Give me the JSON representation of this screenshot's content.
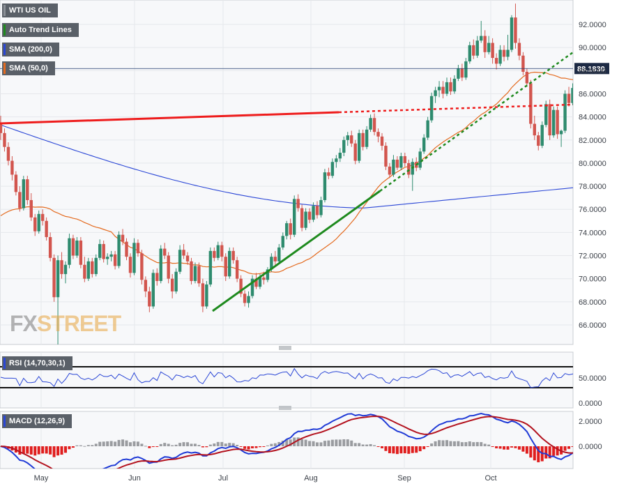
{
  "chart_data": {
    "type": "candlestick",
    "instrument": "WTI US OIL",
    "watermark": {
      "fx": "FX",
      "street": "STREET"
    },
    "indicators": {
      "trend": {
        "label": "Auto Trend Lines",
        "color": "#1e8a1e"
      },
      "sma200": {
        "label": "SMA (200,0)",
        "color": "#2a46d6"
      },
      "sma50": {
        "label": "SMA (50,0)",
        "color": "#e46a1e"
      }
    },
    "colors": {
      "up": "#2e8b6e",
      "down": "#d2554e",
      "trend_red": "#ee1c1c",
      "trend_green": "#1e8a1e",
      "price_line": "#1f3a6e"
    },
    "price_axis": {
      "min": 64.0,
      "max": 93.5,
      "ticks": [
        "92.0000",
        "90.0000",
        "88.0000",
        "86.0000",
        "84.0000",
        "82.0000",
        "80.0000",
        "78.0000",
        "76.0000",
        "74.0000",
        "72.0000",
        "70.0000",
        "68.0000",
        "66.0000"
      ]
    },
    "last_price": "88.1830",
    "x_labels": [
      "May",
      "Jun",
      "Jul",
      "Aug",
      "Sep",
      "Oct"
    ],
    "candles": [
      [
        83.5,
        84.1,
        82.0,
        82.6
      ],
      [
        82.6,
        83.0,
        81.0,
        81.4
      ],
      [
        81.4,
        81.8,
        79.8,
        80.2
      ],
      [
        80.2,
        80.6,
        78.5,
        79.0
      ],
      [
        79.0,
        79.3,
        77.2,
        77.5
      ],
      [
        77.5,
        78.0,
        75.8,
        76.1
      ],
      [
        76.1,
        78.9,
        75.9,
        78.6
      ],
      [
        78.6,
        78.9,
        76.4,
        76.8
      ],
      [
        76.8,
        77.4,
        75.0,
        75.3
      ],
      [
        75.3,
        75.6,
        73.7,
        74.1
      ],
      [
        74.1,
        75.9,
        73.9,
        75.6
      ],
      [
        75.6,
        76.0,
        74.6,
        75.0
      ],
      [
        75.0,
        75.3,
        73.3,
        73.6
      ],
      [
        73.6,
        74.0,
        71.5,
        71.8
      ],
      [
        71.8,
        72.1,
        68.0,
        68.4
      ],
      [
        68.4,
        72.0,
        64.2,
        71.6
      ],
      [
        71.6,
        72.3,
        70.0,
        70.4
      ],
      [
        70.4,
        71.5,
        69.6,
        71.2
      ],
      [
        71.2,
        73.9,
        70.9,
        73.5
      ],
      [
        73.5,
        73.8,
        71.7,
        72.0
      ],
      [
        72.0,
        73.6,
        71.8,
        73.3
      ],
      [
        73.3,
        73.6,
        70.9,
        71.2
      ],
      [
        71.2,
        71.9,
        69.7,
        70.0
      ],
      [
        70.0,
        71.8,
        69.8,
        71.5
      ],
      [
        71.5,
        71.8,
        70.1,
        70.4
      ],
      [
        70.4,
        72.1,
        70.2,
        71.8
      ],
      [
        71.8,
        73.4,
        71.6,
        73.0
      ],
      [
        73.0,
        73.3,
        71.4,
        71.7
      ],
      [
        71.7,
        72.2,
        71.2,
        71.9
      ],
      [
        71.9,
        72.4,
        71.5,
        72.1
      ],
      [
        72.1,
        72.4,
        70.8,
        71.1
      ],
      [
        71.1,
        74.1,
        70.9,
        73.8
      ],
      [
        73.8,
        74.3,
        72.9,
        73.2
      ],
      [
        73.2,
        73.5,
        71.6,
        71.9
      ],
      [
        71.9,
        72.2,
        70.1,
        70.5
      ],
      [
        70.5,
        73.5,
        70.3,
        73.1
      ],
      [
        73.1,
        73.4,
        71.9,
        72.2
      ],
      [
        72.2,
        72.5,
        69.5,
        69.9
      ],
      [
        69.9,
        70.2,
        68.4,
        68.9
      ],
      [
        68.9,
        69.3,
        67.1,
        67.6
      ],
      [
        67.6,
        70.8,
        67.4,
        70.5
      ],
      [
        70.5,
        70.9,
        69.4,
        69.8
      ],
      [
        69.8,
        72.9,
        69.6,
        72.6
      ],
      [
        72.6,
        73.1,
        71.7,
        72.0
      ],
      [
        72.0,
        72.3,
        69.6,
        70.0
      ],
      [
        70.0,
        70.4,
        68.3,
        68.9
      ],
      [
        68.9,
        70.9,
        68.7,
        70.6
      ],
      [
        70.6,
        72.9,
        70.4,
        72.5
      ],
      [
        72.5,
        73.0,
        71.7,
        72.0
      ],
      [
        72.0,
        72.3,
        71.2,
        71.5
      ],
      [
        71.5,
        71.8,
        69.5,
        69.8
      ],
      [
        69.8,
        71.4,
        69.6,
        71.1
      ],
      [
        71.1,
        71.4,
        69.3,
        69.6
      ],
      [
        69.6,
        70.0,
        67.1,
        67.6
      ],
      [
        67.6,
        69.8,
        67.4,
        69.5
      ],
      [
        69.5,
        72.7,
        69.3,
        72.4
      ],
      [
        72.4,
        72.7,
        71.5,
        71.8
      ],
      [
        71.8,
        73.2,
        71.6,
        72.9
      ],
      [
        72.9,
        73.2,
        71.5,
        71.9
      ],
      [
        71.9,
        72.2,
        69.8,
        70.2
      ],
      [
        70.2,
        72.7,
        70.0,
        72.4
      ],
      [
        72.4,
        72.7,
        71.3,
        71.6
      ],
      [
        71.6,
        71.9,
        69.7,
        70.0
      ],
      [
        70.0,
        70.3,
        68.4,
        68.7
      ],
      [
        68.7,
        69.0,
        67.6,
        67.9
      ],
      [
        67.9,
        68.9,
        67.5,
        68.5
      ],
      [
        68.5,
        70.3,
        68.3,
        70.0
      ],
      [
        70.0,
        70.5,
        69.1,
        69.3
      ],
      [
        69.3,
        70.4,
        69.1,
        70.1
      ],
      [
        70.1,
        70.6,
        69.5,
        69.9
      ],
      [
        69.9,
        71.0,
        69.7,
        70.8
      ],
      [
        70.8,
        72.2,
        70.6,
        71.9
      ],
      [
        71.9,
        72.4,
        71.2,
        71.5
      ],
      [
        71.5,
        73.0,
        71.3,
        72.7
      ],
      [
        72.7,
        74.0,
        72.5,
        73.7
      ],
      [
        73.7,
        75.0,
        73.4,
        74.8
      ],
      [
        74.8,
        75.2,
        73.4,
        73.8
      ],
      [
        73.8,
        77.2,
        73.6,
        76.9
      ],
      [
        76.9,
        77.3,
        75.8,
        76.1
      ],
      [
        76.1,
        76.4,
        74.1,
        74.4
      ],
      [
        74.4,
        76.1,
        74.2,
        75.8
      ],
      [
        75.8,
        76.1,
        74.8,
        75.1
      ],
      [
        75.1,
        76.6,
        74.9,
        76.3
      ],
      [
        76.3,
        76.7,
        75.2,
        75.5
      ],
      [
        75.5,
        77.1,
        75.3,
        76.8
      ],
      [
        76.8,
        79.5,
        76.6,
        79.2
      ],
      [
        79.2,
        79.6,
        78.6,
        78.9
      ],
      [
        78.9,
        80.4,
        78.7,
        80.1
      ],
      [
        80.1,
        80.7,
        79.6,
        80.4
      ],
      [
        80.4,
        81.3,
        80.1,
        80.9
      ],
      [
        80.9,
        82.3,
        80.6,
        82.0
      ],
      [
        82.0,
        82.7,
        81.5,
        82.4
      ],
      [
        82.4,
        82.8,
        81.4,
        81.7
      ],
      [
        81.7,
        82.0,
        79.9,
        80.2
      ],
      [
        80.2,
        82.9,
        80.0,
        82.6
      ],
      [
        82.6,
        82.9,
        81.1,
        81.4
      ],
      [
        81.4,
        83.2,
        81.2,
        82.9
      ],
      [
        82.9,
        84.2,
        82.7,
        83.9
      ],
      [
        83.9,
        84.3,
        82.4,
        82.7
      ],
      [
        82.7,
        83.0,
        81.8,
        82.3
      ],
      [
        82.3,
        82.6,
        81.1,
        81.5
      ],
      [
        81.5,
        81.8,
        79.4,
        79.7
      ],
      [
        79.7,
        80.0,
        78.7,
        79.0
      ],
      [
        79.0,
        80.7,
        78.8,
        80.3
      ],
      [
        80.3,
        80.6,
        79.4,
        79.6
      ],
      [
        79.6,
        80.9,
        79.4,
        80.6
      ],
      [
        80.6,
        80.9,
        79.7,
        80.0
      ],
      [
        80.0,
        80.3,
        78.7,
        79.0
      ],
      [
        79.0,
        80.4,
        77.6,
        80.1
      ],
      [
        80.1,
        80.5,
        79.3,
        79.6
      ],
      [
        79.6,
        81.3,
        79.4,
        81.0
      ],
      [
        81.0,
        82.5,
        80.8,
        82.2
      ],
      [
        82.2,
        84.0,
        82.0,
        83.7
      ],
      [
        83.7,
        86.1,
        83.5,
        85.8
      ],
      [
        85.8,
        86.6,
        85.2,
        86.3
      ],
      [
        86.3,
        87.1,
        85.7,
        86.6
      ],
      [
        86.6,
        87.1,
        85.6,
        86.0
      ],
      [
        86.0,
        87.4,
        85.8,
        87.0
      ],
      [
        87.0,
        87.4,
        85.9,
        86.2
      ],
      [
        86.2,
        87.6,
        86.0,
        87.3
      ],
      [
        87.3,
        88.5,
        87.1,
        88.2
      ],
      [
        88.2,
        88.6,
        87.1,
        87.4
      ],
      [
        87.4,
        89.1,
        87.2,
        88.8
      ],
      [
        88.8,
        90.5,
        88.6,
        90.2
      ],
      [
        90.2,
        90.7,
        89.0,
        89.3
      ],
      [
        89.3,
        91.0,
        89.1,
        90.6
      ],
      [
        90.6,
        92.3,
        90.4,
        91.0
      ],
      [
        91.0,
        91.5,
        89.1,
        89.6
      ],
      [
        89.6,
        91.0,
        89.4,
        90.4
      ],
      [
        90.4,
        90.8,
        88.6,
        89.1
      ],
      [
        89.1,
        89.5,
        88.1,
        88.6
      ],
      [
        88.6,
        90.2,
        88.4,
        89.8
      ],
      [
        89.8,
        90.2,
        88.8,
        89.2
      ],
      [
        89.2,
        91.1,
        88.9,
        89.8
      ],
      [
        89.8,
        92.8,
        89.6,
        92.6
      ],
      [
        92.6,
        93.8,
        89.9,
        90.4
      ],
      [
        90.4,
        90.8,
        88.9,
        89.3
      ],
      [
        89.3,
        89.6,
        87.6,
        87.9
      ],
      [
        87.9,
        88.2,
        86.6,
        86.9
      ],
      [
        86.9,
        87.2,
        83.0,
        83.4
      ],
      [
        83.4,
        84.1,
        82.0,
        82.4
      ],
      [
        82.4,
        82.7,
        81.1,
        81.5
      ],
      [
        81.5,
        83.6,
        81.3,
        83.3
      ],
      [
        83.3,
        85.4,
        83.1,
        85.1
      ],
      [
        85.1,
        85.5,
        82.0,
        82.4
      ],
      [
        82.4,
        84.9,
        82.2,
        84.6
      ],
      [
        84.6,
        84.9,
        82.1,
        82.5
      ],
      [
        82.5,
        82.9,
        81.4,
        82.8
      ],
      [
        82.8,
        86.3,
        82.6,
        86.0
      ],
      [
        86.0,
        86.6,
        84.9,
        85.2
      ],
      [
        85.2,
        86.9,
        85.0,
        86.5
      ],
      [
        86.5,
        87.8,
        85.1,
        87.5
      ],
      [
        87.5,
        89.3,
        87.3,
        89.1
      ],
      [
        89.1,
        89.7,
        87.9,
        88.2
      ]
    ],
    "rsi": {
      "label": "RSI (14,70,30,1)",
      "ticks": [
        "50.0000",
        "0.0000"
      ],
      "upper": 70,
      "lower": 30
    },
    "macd": {
      "label": "MACD (12,26,9)",
      "ticks": [
        "2.0000",
        "0.0000"
      ]
    }
  }
}
